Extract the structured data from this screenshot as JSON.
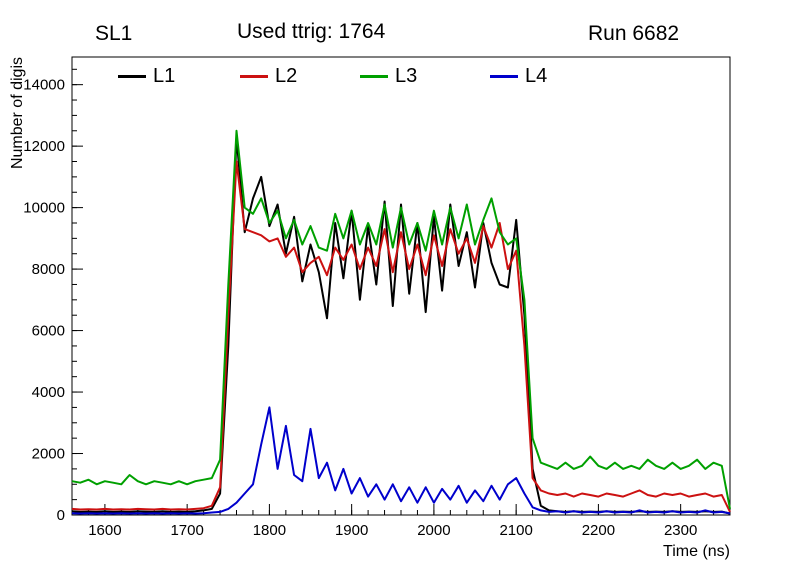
{
  "header": {
    "left": "SL1",
    "center": "Used ttrig: 1764",
    "right": "Run 6682"
  },
  "chart_data": {
    "type": "line",
    "title": "",
    "xlabel": "Time (ns)",
    "ylabel": "Number of digis",
    "xlim": [
      1560,
      2360
    ],
    "ylim": [
      0,
      14900
    ],
    "grid": false,
    "legend_position": "top-inside-horizontal",
    "xticks": [
      1600,
      1700,
      1800,
      1900,
      2000,
      2100,
      2200,
      2300
    ],
    "yticks": [
      0,
      2000,
      4000,
      6000,
      8000,
      10000,
      12000,
      14000
    ],
    "axis_color": "#000000",
    "x": [
      1560,
      1570,
      1580,
      1590,
      1600,
      1610,
      1620,
      1630,
      1640,
      1650,
      1660,
      1670,
      1680,
      1690,
      1700,
      1710,
      1720,
      1730,
      1740,
      1750,
      1760,
      1770,
      1780,
      1790,
      1800,
      1810,
      1820,
      1830,
      1840,
      1850,
      1860,
      1870,
      1880,
      1890,
      1900,
      1910,
      1920,
      1930,
      1940,
      1950,
      1960,
      1970,
      1980,
      1990,
      2000,
      2010,
      2020,
      2030,
      2040,
      2050,
      2060,
      2070,
      2080,
      2090,
      2100,
      2110,
      2120,
      2130,
      2140,
      2150,
      2160,
      2170,
      2180,
      2190,
      2200,
      2210,
      2220,
      2230,
      2240,
      2250,
      2260,
      2270,
      2280,
      2290,
      2300,
      2310,
      2320,
      2330,
      2340,
      2350,
      2360
    ],
    "series": [
      {
        "name": "L1",
        "color": "#000000",
        "values": [
          120,
          100,
          110,
          100,
          120,
          100,
          110,
          100,
          120,
          110,
          100,
          120,
          100,
          110,
          100,
          120,
          150,
          200,
          700,
          5500,
          12300,
          9200,
          10300,
          11000,
          9400,
          10100,
          8500,
          9700,
          7600,
          8800,
          7900,
          6400,
          9500,
          7700,
          9900,
          7000,
          9400,
          7500,
          10200,
          6800,
          10100,
          7200,
          9500,
          6600,
          9700,
          7300,
          10100,
          8100,
          9200,
          7400,
          9500,
          8200,
          7500,
          7400,
          9600,
          6500,
          1500,
          300,
          150,
          120,
          100,
          120,
          100,
          110,
          100,
          120,
          100,
          110,
          100,
          120,
          100,
          110,
          100,
          120,
          100,
          110,
          100,
          120,
          100,
          110,
          50
        ]
      },
      {
        "name": "L2",
        "color": "#cc1111",
        "values": [
          200,
          180,
          190,
          180,
          200,
          180,
          190,
          180,
          200,
          190,
          180,
          200,
          180,
          190,
          180,
          200,
          220,
          300,
          900,
          6500,
          11500,
          9300,
          9200,
          9100,
          8900,
          9000,
          8400,
          8700,
          7900,
          8200,
          8400,
          7800,
          8700,
          8300,
          8800,
          8000,
          8700,
          8100,
          9300,
          7900,
          9200,
          8000,
          8800,
          7800,
          9100,
          8100,
          9300,
          8500,
          9000,
          8200,
          9400,
          8700,
          9500,
          8000,
          8600,
          5500,
          1200,
          800,
          700,
          650,
          700,
          600,
          700,
          650,
          600,
          700,
          650,
          600,
          700,
          800,
          650,
          600,
          700,
          650,
          700,
          600,
          650,
          700,
          600,
          650,
          100
        ]
      },
      {
        "name": "L3",
        "color": "#00a000",
        "values": [
          1100,
          1050,
          1150,
          1000,
          1100,
          1050,
          1000,
          1300,
          1100,
          1000,
          1100,
          1050,
          1000,
          1100,
          1000,
          1100,
          1150,
          1200,
          1800,
          7500,
          12500,
          10000,
          9800,
          10300,
          9500,
          9900,
          9000,
          9600,
          8800,
          9400,
          8700,
          8600,
          9800,
          9000,
          9900,
          8800,
          9500,
          8800,
          10100,
          8700,
          10000,
          8800,
          9500,
          8600,
          9900,
          8800,
          10000,
          9000,
          10100,
          8800,
          9600,
          10300,
          9200,
          8800,
          9000,
          7000,
          2500,
          1700,
          1600,
          1500,
          1700,
          1500,
          1600,
          1900,
          1600,
          1500,
          1700,
          1500,
          1600,
          1500,
          1800,
          1600,
          1500,
          1700,
          1500,
          1600,
          1800,
          1500,
          1700,
          1600,
          200
        ]
      },
      {
        "name": "L4",
        "color": "#0000cc",
        "values": [
          60,
          50,
          60,
          50,
          60,
          50,
          60,
          50,
          60,
          50,
          60,
          50,
          60,
          50,
          60,
          50,
          60,
          80,
          100,
          200,
          400,
          700,
          1000,
          2300,
          3500,
          1500,
          2900,
          1300,
          1100,
          2800,
          1200,
          1700,
          800,
          1500,
          700,
          1200,
          600,
          1000,
          500,
          1000,
          450,
          900,
          400,
          900,
          400,
          850,
          500,
          950,
          400,
          800,
          450,
          950,
          500,
          1000,
          1200,
          700,
          250,
          150,
          100,
          120,
          80,
          120,
          80,
          100,
          80,
          120,
          80,
          100,
          80,
          150,
          80,
          100,
          80,
          120,
          80,
          100,
          80,
          150,
          80,
          100,
          50
        ]
      }
    ]
  }
}
